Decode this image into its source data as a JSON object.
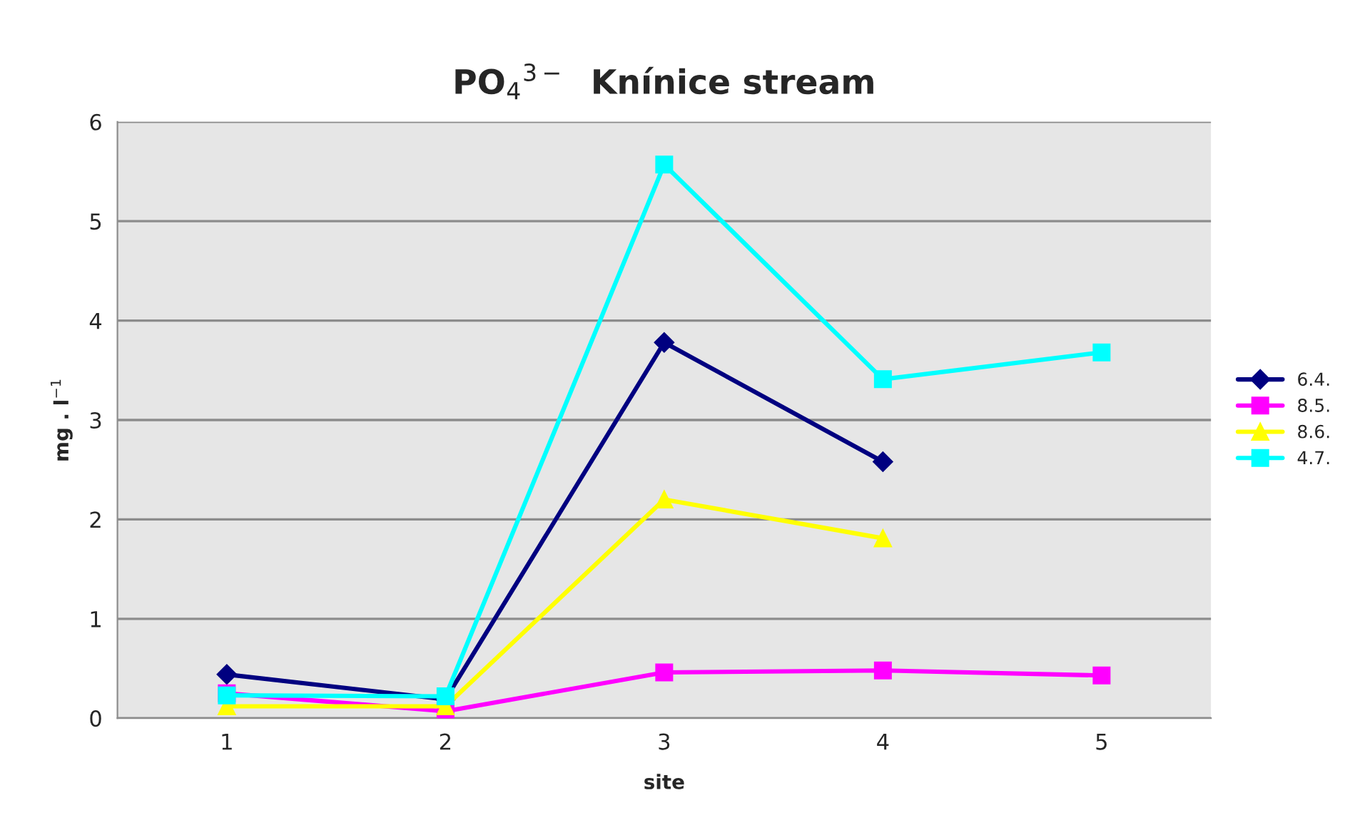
{
  "chart_data": {
    "type": "line",
    "title": "PO$_{4}$$^{3−}$  Knínice stream",
    "xlabel": "site",
    "ylabel": "mg . l$^{−1}$",
    "categories": [
      "1",
      "2",
      "3",
      "4",
      "5"
    ],
    "series": [
      {
        "name": "6.4.",
        "color": "#000080",
        "marker": "diamond",
        "values": [
          0.44,
          0.19,
          3.78,
          2.58,
          null
        ]
      },
      {
        "name": "8.5.",
        "color": "#ff00ff",
        "marker": "square",
        "values": [
          0.25,
          0.07,
          0.46,
          0.48,
          0.43
        ]
      },
      {
        "name": "8.6.",
        "color": "#ffff00",
        "marker": "triangle",
        "values": [
          0.12,
          0.12,
          2.2,
          1.81,
          null
        ]
      },
      {
        "name": "4.7.",
        "color": "#00ffff",
        "marker": "square",
        "values": [
          0.23,
          0.22,
          5.57,
          3.41,
          3.68
        ]
      }
    ],
    "ylim": [
      0,
      6
    ],
    "yticks": [
      0,
      1,
      2,
      3,
      4,
      5,
      6
    ],
    "grid": "y",
    "legend": "right",
    "line_style": "solid"
  }
}
